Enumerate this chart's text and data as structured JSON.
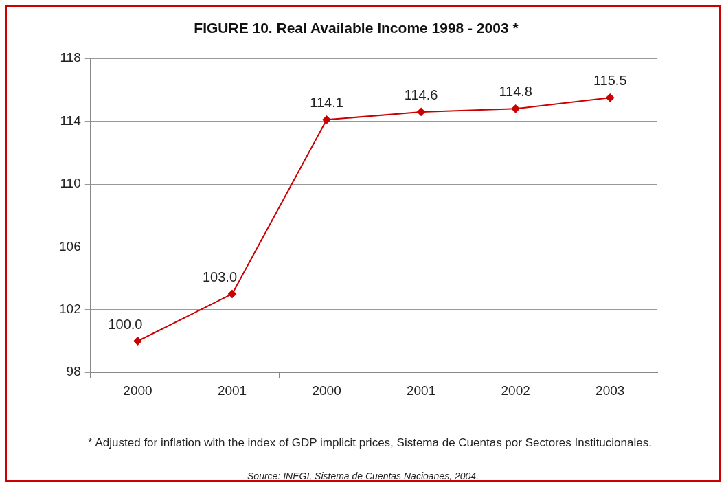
{
  "chart_data": {
    "type": "line",
    "title": "FIGURE 10. Real Available Income 1998 - 2003 *",
    "categories": [
      "2000",
      "2001",
      "2000",
      "2001",
      "2002",
      "2003"
    ],
    "values": [
      100.0,
      103.0,
      114.1,
      114.6,
      114.8,
      115.5
    ],
    "value_labels": [
      "100.0",
      "103.0",
      "114.1",
      "114.6",
      "114.8",
      "115.5"
    ],
    "color": "#cc0000",
    "marker": "diamond",
    "line_style": "solid",
    "ylim": [
      98,
      118
    ],
    "yticks": [
      98,
      102,
      106,
      110,
      114,
      118
    ],
    "grid": "y",
    "annotations": [
      "* Adjusted for inflation with the index of GDP implicit prices, Sistema de Cuentas por Sectores Institucionales.",
      "Source: INEGI, Sistema de Cuentas Nacioanes, 2004."
    ]
  }
}
